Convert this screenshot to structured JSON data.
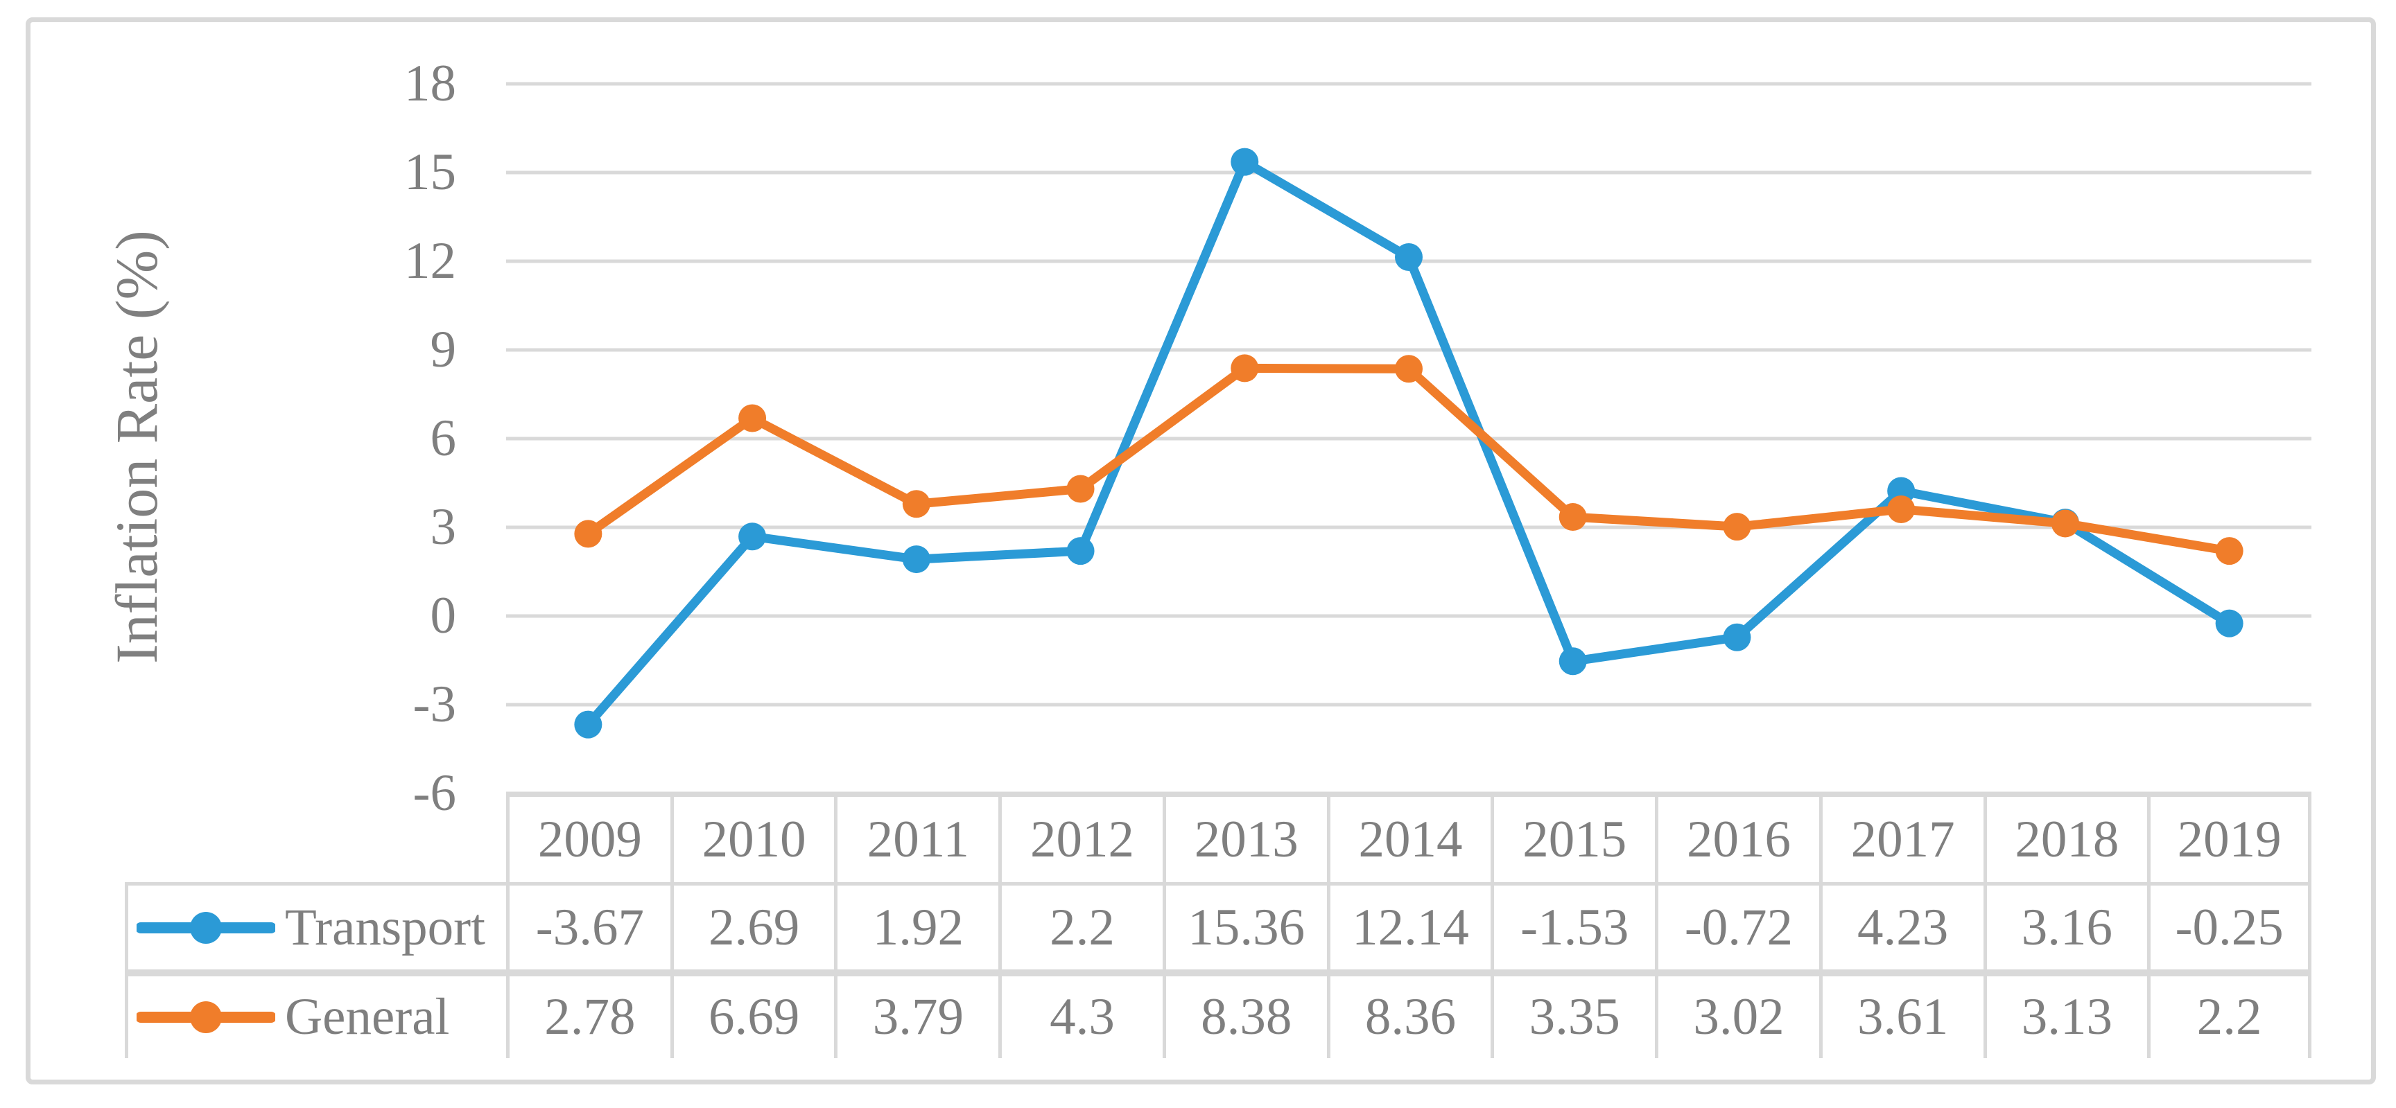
{
  "chart_data": {
    "type": "line",
    "title": "",
    "xlabel": "",
    "ylabel": "Inflation Rate (%)",
    "categories": [
      "2009",
      "2010",
      "2011",
      "2012",
      "2013",
      "2014",
      "2015",
      "2016",
      "2017",
      "2018",
      "2019"
    ],
    "series": [
      {
        "name": "Transport",
        "color": "#2B9AD6",
        "values": [
          -3.67,
          2.69,
          1.92,
          2.2,
          15.36,
          12.14,
          -1.53,
          -0.72,
          4.23,
          3.16,
          -0.25
        ]
      },
      {
        "name": "General",
        "color": "#F07D2A",
        "values": [
          2.78,
          6.69,
          3.79,
          4.3,
          8.38,
          8.36,
          3.35,
          3.02,
          3.61,
          3.13,
          2.2
        ]
      }
    ],
    "yticks": [
      18,
      15,
      12,
      9,
      6,
      3,
      0,
      -3,
      -6
    ],
    "ylim": [
      -6,
      18
    ],
    "grid": true,
    "legend_position": "table-left",
    "marker": "circle"
  },
  "colors": {
    "grid": "#D9D9D9",
    "frame_border": "#D9D9D9",
    "text": "#7F7F7F",
    "background": "#FFFFFF"
  }
}
